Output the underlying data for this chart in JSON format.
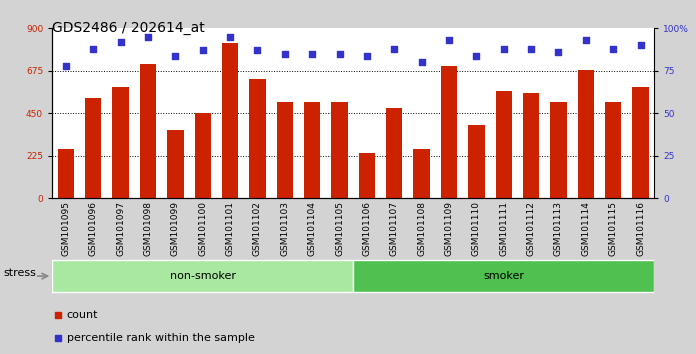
{
  "title": "GDS2486 / 202614_at",
  "samples": [
    "GSM101095",
    "GSM101096",
    "GSM101097",
    "GSM101098",
    "GSM101099",
    "GSM101100",
    "GSM101101",
    "GSM101102",
    "GSM101103",
    "GSM101104",
    "GSM101105",
    "GSM101106",
    "GSM101107",
    "GSM101108",
    "GSM101109",
    "GSM101110",
    "GSM101111",
    "GSM101112",
    "GSM101113",
    "GSM101114",
    "GSM101115",
    "GSM101116"
  ],
  "counts": [
    260,
    530,
    590,
    710,
    360,
    450,
    820,
    630,
    510,
    510,
    510,
    240,
    480,
    260,
    700,
    390,
    570,
    560,
    510,
    680,
    510,
    590
  ],
  "percentile_ranks": [
    78,
    88,
    92,
    95,
    84,
    87,
    95,
    87,
    85,
    85,
    85,
    84,
    88,
    80,
    93,
    84,
    88,
    88,
    86,
    93,
    88,
    90
  ],
  "bar_color": "#cc2200",
  "dot_color": "#3333cc",
  "ylim_left": [
    0,
    900
  ],
  "ylim_right": [
    0,
    100
  ],
  "yticks_left": [
    0,
    225,
    450,
    675,
    900
  ],
  "yticks_right": [
    0,
    25,
    50,
    75,
    100
  ],
  "grid_lines": [
    225,
    450,
    675
  ],
  "groups": [
    {
      "label": "non-smoker",
      "start": 0,
      "end": 11,
      "color": "#a8e8a0"
    },
    {
      "label": "smoker",
      "start": 11,
      "end": 22,
      "color": "#50c050"
    }
  ],
  "stress_label": "stress",
  "legend_count_label": "count",
  "legend_pct_label": "percentile rank within the sample",
  "background_color": "#d3d3d3",
  "plot_bg_color": "#ffffff",
  "title_fontsize": 10,
  "tick_fontsize": 6.5,
  "bar_width": 0.6,
  "non_smoker_count": 11
}
